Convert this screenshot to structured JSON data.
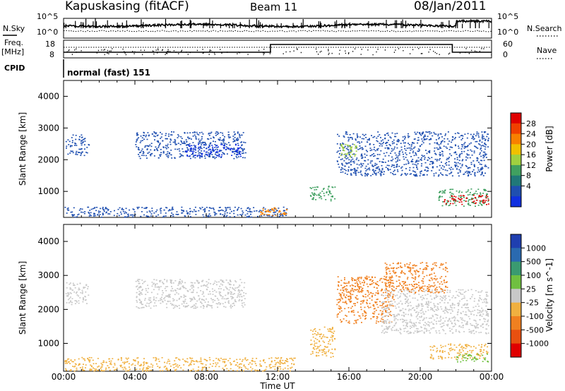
{
  "header": {
    "title": "Kapuskasing (fitACF)",
    "beam": "Beam 11",
    "date": "08/Jan/2011"
  },
  "aux_panels": {
    "nsky_label": "N.Sky",
    "nsky_ticks": [
      "10^5",
      "10^0"
    ],
    "nsearch_label": "N.Search",
    "nsearch_ticks": [
      "10^5",
      "10^0"
    ],
    "freq_label_1": "Freq.",
    "freq_label_2": "[MHz]",
    "freq_ticks": [
      "18",
      "8"
    ],
    "nave_label": "Nave",
    "nave_ticks": [
      "60",
      "0"
    ],
    "cpid_label": "CPID",
    "cpid_text": "normal (fast) 151"
  },
  "power_colorbar": {
    "label": "Power [dB]",
    "ticks": [
      "28",
      "24",
      "20",
      "16",
      "12",
      "8",
      "4"
    ],
    "colors": [
      "#e00000",
      "#f04000",
      "#f88000",
      "#f0c000",
      "#a0d040",
      "#40a060",
      "#207878",
      "#1f4fb0",
      "#1030e0"
    ]
  },
  "velocity_colorbar": {
    "label": "Velocity [m s^-1]",
    "ticks": [
      "1000",
      "500",
      "100",
      "25",
      "-25",
      "-100",
      "-500",
      "-1000"
    ],
    "colors": [
      "#1f3fb0",
      "#2a6ab0",
      "#3a9a70",
      "#70c040",
      "#c8c8c8",
      "#f0b040",
      "#f08020",
      "#e85010",
      "#e00000"
    ]
  },
  "chart_data": [
    {
      "type": "heatmap",
      "title": "Power",
      "ylabel": "Slant Range [km]",
      "xlabel": "",
      "yticks": [
        "1000",
        "2000",
        "3000",
        "4000"
      ],
      "xlim": [
        0,
        24
      ],
      "ylim": [
        180,
        4500
      ],
      "regions": [
        {
          "t0": 0.1,
          "t1": 1.4,
          "r0": 2150,
          "r1": 2800,
          "color": "#1f4fb0"
        },
        {
          "t0": 4.0,
          "t1": 10.2,
          "r0": 2050,
          "r1": 2900,
          "color": "#1f4fb0"
        },
        {
          "t0": 6.8,
          "t1": 10.0,
          "r0": 2100,
          "r1": 2500,
          "color": "#1030e0"
        },
        {
          "t0": 0.0,
          "t1": 12.5,
          "r0": 200,
          "r1": 520,
          "color": "#1f4fb0"
        },
        {
          "t0": 11.0,
          "t1": 12.5,
          "r0": 250,
          "r1": 500,
          "color": "#f88000"
        },
        {
          "t0": 13.8,
          "t1": 15.2,
          "r0": 700,
          "r1": 1200,
          "color": "#40a060"
        },
        {
          "t0": 15.3,
          "t1": 23.8,
          "r0": 1500,
          "r1": 2900,
          "color": "#1f4fb0"
        },
        {
          "t0": 15.5,
          "t1": 16.4,
          "r0": 2100,
          "r1": 2500,
          "color": "#a0d040"
        },
        {
          "t0": 21.0,
          "t1": 23.8,
          "r0": 550,
          "r1": 1100,
          "color": "#40a060"
        },
        {
          "t0": 21.3,
          "t1": 23.8,
          "r0": 600,
          "r1": 900,
          "color": "#e00000"
        }
      ]
    },
    {
      "type": "heatmap",
      "title": "Velocity",
      "ylabel": "Slant Range [km]",
      "xlabel": "Time UT",
      "xticks": [
        "00:00",
        "04:00",
        "08:00",
        "12:00",
        "16:00",
        "20:00",
        "00:00"
      ],
      "yticks": [
        "1000",
        "2000",
        "3000",
        "4000"
      ],
      "xlim": [
        0,
        24
      ],
      "ylim": [
        180,
        4500
      ],
      "regions": [
        {
          "t0": 0.1,
          "t1": 1.4,
          "r0": 2150,
          "r1": 2800,
          "color": "#c8c8c8"
        },
        {
          "t0": 4.0,
          "t1": 10.2,
          "r0": 2050,
          "r1": 2900,
          "color": "#c8c8c8"
        },
        {
          "t0": 0.0,
          "t1": 13.0,
          "r0": 200,
          "r1": 600,
          "color": "#f0b040"
        },
        {
          "t0": 13.8,
          "t1": 15.2,
          "r0": 600,
          "r1": 1500,
          "color": "#f0b040"
        },
        {
          "t0": 15.3,
          "t1": 18.5,
          "r0": 1600,
          "r1": 3000,
          "color": "#f08020"
        },
        {
          "t0": 17.8,
          "t1": 23.8,
          "r0": 1300,
          "r1": 2600,
          "color": "#c8c8c8"
        },
        {
          "t0": 18.0,
          "t1": 21.5,
          "r0": 2500,
          "r1": 3400,
          "color": "#f08020"
        },
        {
          "t0": 20.5,
          "t1": 23.8,
          "r0": 550,
          "r1": 1000,
          "color": "#f0b040"
        },
        {
          "t0": 22.0,
          "t1": 23.8,
          "r0": 450,
          "r1": 700,
          "color": "#70c040"
        }
      ]
    }
  ]
}
